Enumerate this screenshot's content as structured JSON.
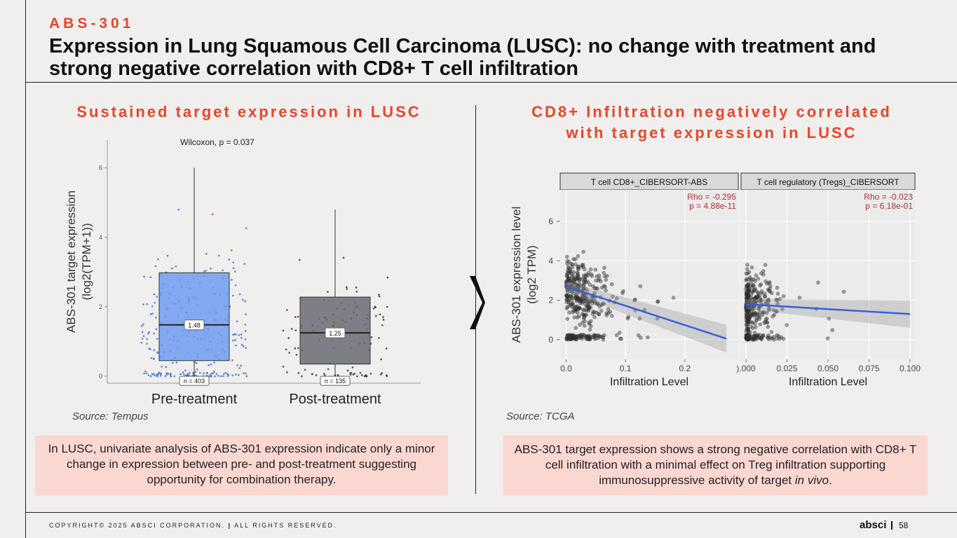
{
  "header": {
    "kicker": "ABS-301",
    "title": "Expression in Lung Squamous Cell Carcinoma (LUSC): no change with treatment and strong negative correlation with CD8+ T cell infiltration"
  },
  "left": {
    "heading": "Sustained target expression in LUSC",
    "source": "Source: Tempus",
    "note": "In LUSC, univariate analysis of ABS-301 expression indicate only a minor change in expression between pre- and post-treatment suggesting opportunity for combination therapy."
  },
  "right": {
    "heading_line1": "CD8+ Infiltration negatively correlated",
    "heading_line2": "with target expression in LUSC",
    "source": "Source: TCGA",
    "note_main": "ABS-301 target expression shows a strong negative correlation with CD8+ T cell infiltration with a minimal effect on Treg infiltration supporting immunosuppressive activity of target ",
    "note_italic": "in vivo",
    "note_end": "."
  },
  "chart_data": [
    {
      "type": "box",
      "title": "Wilcoxon, p = 0.037",
      "ylabel_line1": "ABS-301 target expression",
      "ylabel_line2": "(log2(TPM+1))",
      "ylim": [
        -0.2,
        6.8
      ],
      "yticks": [
        0,
        2,
        4,
        6
      ],
      "groups": [
        {
          "name": "Pre-treatment",
          "color": "#6f9cf0",
          "point_color": "#3a6fd8",
          "min": 0,
          "q1": 0.45,
          "median": 1.48,
          "q3": 2.98,
          "max": 6.0,
          "median_label": "1.48",
          "n_label": "n = 403"
        },
        {
          "name": "Post-treatment",
          "color": "#6a6a74",
          "point_color": "#333333",
          "min": 0,
          "q1": 0.35,
          "median": 1.25,
          "q3": 2.28,
          "max": 4.8,
          "median_label": "1.25",
          "n_label": "n = 135"
        }
      ]
    },
    {
      "type": "scatter",
      "ylabel_line1": "ABS-301 expression level",
      "ylabel_line2": "(log2 TPM)",
      "yticks": [
        0,
        2,
        4,
        6
      ],
      "ylim": [
        -1,
        7.6
      ],
      "panels": [
        {
          "title": "T cell CD8+_CIBERSORT-ABS",
          "rho": "Rho = -0.295",
          "p": "p = 4.88e-11",
          "xlabel": "Infiltration Level",
          "xlim": [
            -0.01,
            0.29
          ],
          "xticks": [
            0,
            0.1,
            0.2
          ],
          "xtick_labels": [
            "0.0",
            "0.1",
            "0.2"
          ],
          "fit": [
            [
              0.0,
              2.7
            ],
            [
              0.27,
              0.05
            ]
          ]
        },
        {
          "title": "T cell regulatory (Tregs)_CIBERSORT",
          "rho": "Rho = -0.023",
          "p": "p = 6.18e-01",
          "xlabel": "Infiltration Level",
          "xlim": [
            -0.003,
            0.103
          ],
          "xticks": [
            0,
            0.025,
            0.05,
            0.075,
            0.1
          ],
          "xtick_labels": [
            ").000",
            "0.025",
            "0.050",
            "0.075",
            "0.100"
          ],
          "fit": [
            [
              0.0,
              1.8
            ],
            [
              0.1,
              1.3
            ]
          ]
        }
      ]
    }
  ],
  "footer": {
    "copyright": "COPYRIGHT© 2025 ABSCI CORPORATION.",
    "sep": "|",
    "rights": "ALL RIGHTS RESERVED.",
    "brand": "absci",
    "page": "58"
  },
  "colors": {
    "accent": "#e8452c",
    "note_bg": "#fbd7d2",
    "fit_line": "#3b5fd9",
    "rho_text": "#b03030"
  },
  "icons": {
    "chevron": "chevron-right-icon"
  }
}
